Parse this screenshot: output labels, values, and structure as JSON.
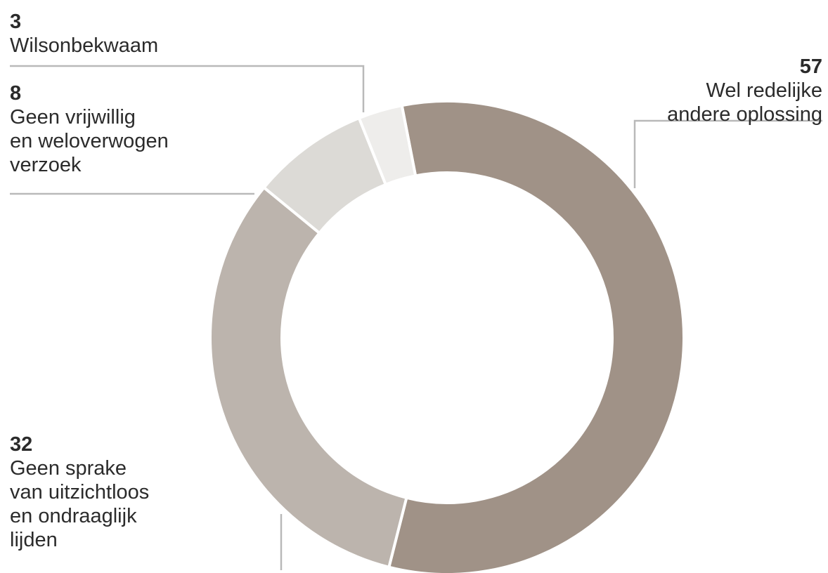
{
  "chart_data": {
    "type": "pie",
    "donut": true,
    "title": "",
    "slices": [
      {
        "value": 57,
        "label": "Wel redelijke\nandere oplossing",
        "color": "#a09287"
      },
      {
        "value": 32,
        "label": "Geen sprake\nvan uitzichtloos\nen ondraaglijk\nlijden",
        "color": "#bcb4ad"
      },
      {
        "value": 8,
        "label": "Geen vrijwillig\nen weloverwogen\nverzoek",
        "color": "#dcdad6"
      },
      {
        "value": 3,
        "label": "Wilsonbekwaam",
        "color": "#eeedeb"
      }
    ],
    "start": "clockwise from just left of top"
  }
}
